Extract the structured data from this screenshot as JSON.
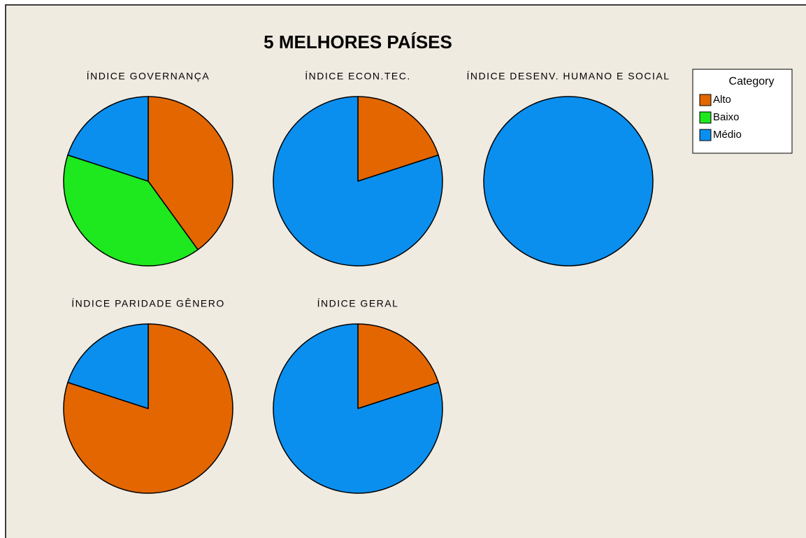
{
  "title": "5 MELHORES PAÍSES",
  "legend": {
    "title": "Category",
    "categories": [
      "Alto",
      "Baixo",
      "Médio"
    ],
    "colors": [
      "#e36600",
      "#1ee81e",
      "#0a8fee"
    ]
  },
  "chart_data": [
    {
      "type": "pie",
      "title": "ÍNDICE GOVERNANÇA",
      "categories": [
        "Alto",
        "Baixo",
        "Médio"
      ],
      "values": [
        2,
        2,
        1
      ]
    },
    {
      "type": "pie",
      "title": "ÍNDICE ECON.TEC.",
      "categories": [
        "Alto",
        "Médio"
      ],
      "values": [
        1,
        4
      ]
    },
    {
      "type": "pie",
      "title": "ÍNDICE DESENV. HUMANO E SOCIAL",
      "categories": [
        "Médio"
      ],
      "values": [
        5
      ]
    },
    {
      "type": "pie",
      "title": "ÍNDICE PARIDADE GÊNERO",
      "categories": [
        "Alto",
        "Médio"
      ],
      "values": [
        4,
        1
      ]
    },
    {
      "type": "pie",
      "title": "ÍNDICE GERAL",
      "categories": [
        "Alto",
        "Médio"
      ],
      "values": [
        1,
        4
      ]
    }
  ]
}
